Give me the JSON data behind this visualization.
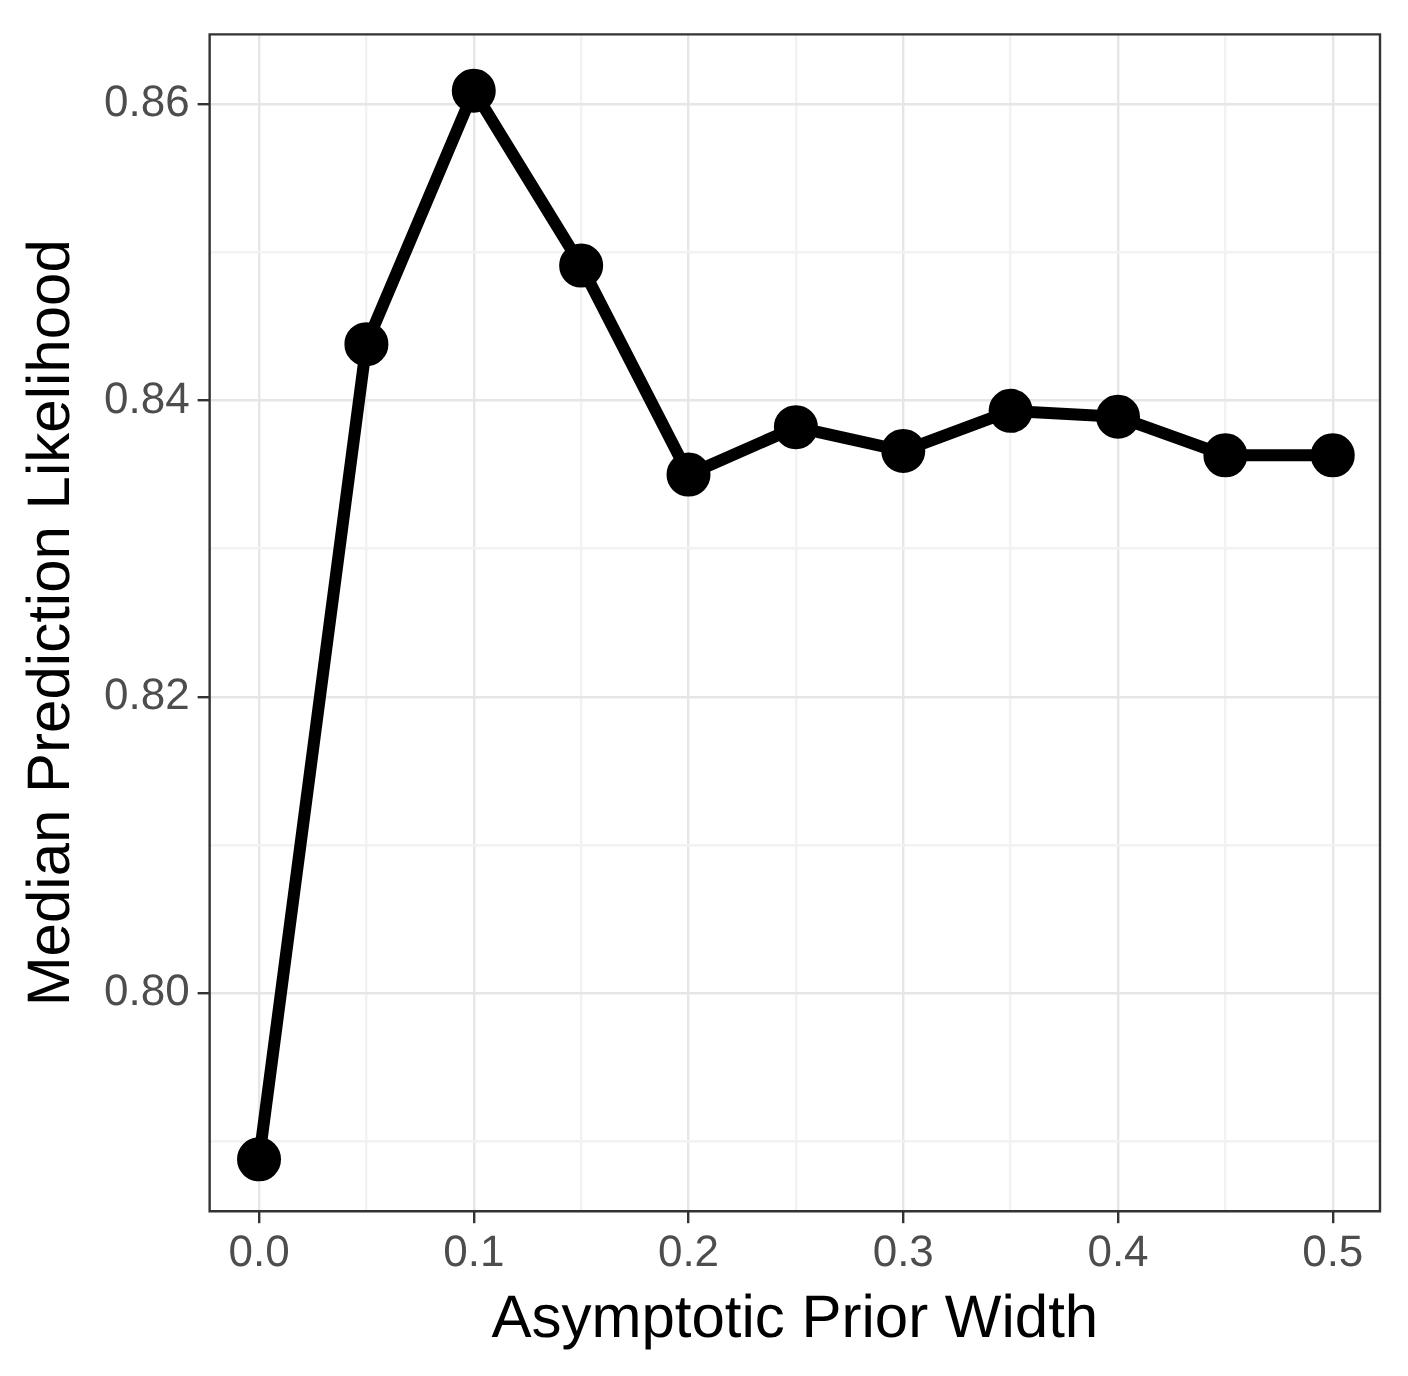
{
  "chart_data": {
    "type": "line",
    "xlabel": "Asymptotic Prior Width",
    "ylabel": "Median Prediction Likelihood",
    "x": [
      0,
      0.05,
      0.1,
      0.15,
      0.2,
      0.25,
      0.3,
      0.35,
      0.4,
      0.45,
      0.5
    ],
    "series": [
      {
        "color": "#000000",
        "values": [
          0.7888,
          0.8438,
          0.8609,
          0.8491,
          0.835,
          0.8382,
          0.8366,
          0.8393,
          0.8389,
          0.8363,
          0.8363
        ]
      }
    ],
    "xlim": [
      -0.023,
      0.522
    ],
    "xticks": [
      {
        "value": 0,
        "label": "0.0"
      },
      {
        "value": 0.05,
        "label": null
      },
      {
        "value": 0.1,
        "label": "0.1"
      },
      {
        "value": 0.15,
        "label": null
      },
      {
        "value": 0.2,
        "label": "0.2"
      },
      {
        "value": 0.25,
        "label": null
      },
      {
        "value": 0.3,
        "label": "0.3"
      },
      {
        "value": 0.35,
        "label": null
      },
      {
        "value": 0.4,
        "label": "0.4"
      },
      {
        "value": 0.45,
        "label": null
      },
      {
        "value": 0.5,
        "label": "0.5"
      }
    ],
    "ylim": [
      0.7853,
      0.8647
    ],
    "yticks": [
      {
        "value": 0.79,
        "label": null
      },
      {
        "value": 0.8,
        "label": "0.80"
      },
      {
        "value": 0.81,
        "label": null
      },
      {
        "value": 0.82,
        "label": "0.82"
      },
      {
        "value": 0.83,
        "label": null
      },
      {
        "value": 0.84,
        "label": "0.84"
      },
      {
        "value": 0.85,
        "label": null
      },
      {
        "value": 0.86,
        "label": "0.86"
      }
    ],
    "grid": true,
    "marker": "circle",
    "line_style": "solid",
    "legend": false
  }
}
